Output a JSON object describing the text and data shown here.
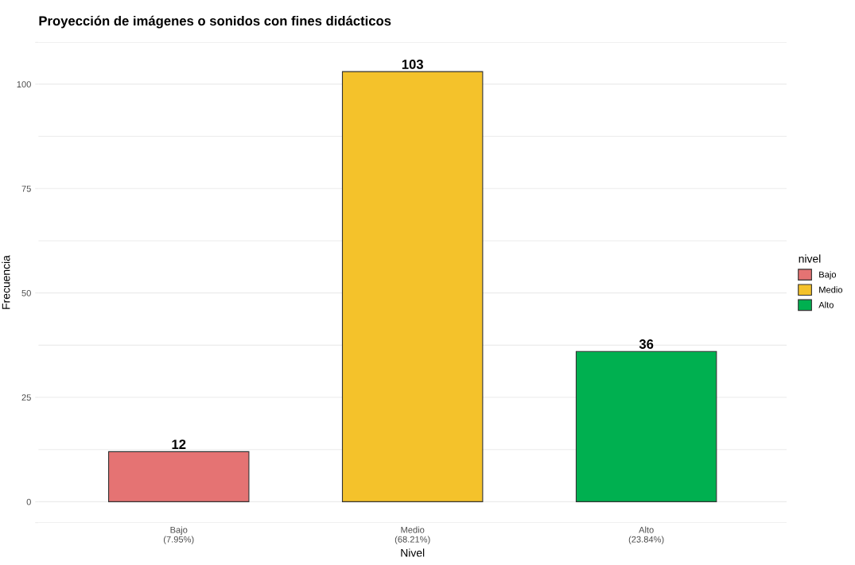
{
  "chart_data": {
    "type": "bar",
    "title": "Proyección de imágenes o sonidos con fines didácticos",
    "xlabel": "Nivel",
    "ylabel": "Frecuencia",
    "legend_title": "nivel",
    "categories": [
      "Bajo\n(7.95%)",
      "Medio\n(68.21%)",
      "Alto\n(23.84%)"
    ],
    "series": [
      {
        "name": "Bajo",
        "color": "#e57373",
        "values": [
          12,
          null,
          null
        ]
      },
      {
        "name": "Medio",
        "color": "#f4c22b",
        "values": [
          null,
          103,
          null
        ]
      },
      {
        "name": "Alto",
        "color": "#00b050",
        "values": [
          null,
          null,
          36
        ]
      }
    ],
    "data_labels": true,
    "ylim": [
      -5,
      110
    ],
    "yticks": [
      {
        "value": -5,
        "label": null
      },
      0,
      25,
      50,
      75,
      100,
      {
        "value": 110,
        "label": null
      }
    ],
    "grid": "y",
    "legend": "right"
  }
}
